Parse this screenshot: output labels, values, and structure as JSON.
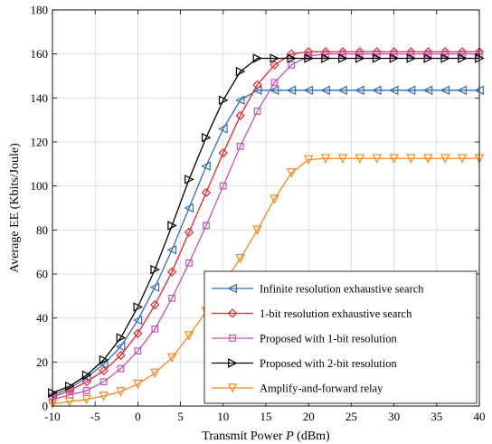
{
  "chart_data": {
    "type": "line",
    "title": "",
    "xlabel": "Transmit Power P (dBm)",
    "ylabel": "Average EE (Kbits/Joule)",
    "xlim": [
      -10,
      40
    ],
    "ylim": [
      0,
      180
    ],
    "xticks": [
      -10,
      -5,
      0,
      5,
      10,
      15,
      20,
      25,
      30,
      35,
      40
    ],
    "yticks": [
      0,
      20,
      40,
      60,
      80,
      100,
      120,
      140,
      160,
      180
    ],
    "grid": true,
    "legend_position": "bottom-right",
    "x": [
      -10,
      -8,
      -6,
      -4,
      -2,
      0,
      2,
      4,
      6,
      8,
      10,
      12,
      14,
      16,
      18,
      20,
      22,
      24,
      26,
      28,
      30,
      32,
      34,
      36,
      38,
      40
    ],
    "series": [
      {
        "name": "Infinite resolution exhaustive search",
        "color": "#2f6db5",
        "marker": "triangle-left",
        "values": [
          5,
          8,
          13,
          19,
          27,
          39,
          54,
          71,
          90,
          109,
          126,
          139,
          143.5,
          143.5,
          143.5,
          143.5,
          143.5,
          143.5,
          143.5,
          143.5,
          143.5,
          143.5,
          143.5,
          143.5,
          143.5,
          143.5
        ]
      },
      {
        "name": "1-bit resolution exhaustive search",
        "color": "#e8262a",
        "marker": "diamond",
        "values": [
          4,
          7,
          11,
          16,
          23,
          33,
          46,
          61,
          79,
          97,
          115,
          132,
          146,
          155,
          160,
          161,
          161,
          161,
          161,
          161,
          161,
          161,
          161,
          161,
          161,
          161
        ]
      },
      {
        "name": "Proposed with 1-bit resolution",
        "color": "#c254b8",
        "marker": "square",
        "values": [
          3,
          5,
          7,
          11,
          17,
          25,
          35,
          49,
          65,
          82,
          100,
          118,
          134,
          147,
          155,
          159,
          160,
          160,
          160,
          160,
          160,
          160,
          160,
          160,
          160,
          160
        ]
      },
      {
        "name": "Proposed with 2-bit resolution",
        "color": "#000000",
        "marker": "triangle-right",
        "values": [
          6,
          9,
          14,
          21,
          31,
          45,
          62,
          82,
          103,
          122,
          139,
          152,
          158,
          158,
          158,
          158,
          158,
          158,
          158,
          158,
          158,
          158,
          158,
          158,
          158,
          158
        ]
      },
      {
        "name": "Amplify-and-forward relay",
        "color": "#f5891f",
        "marker": "triangle-down",
        "values": [
          1,
          2,
          3,
          4.5,
          6.5,
          10,
          15,
          22,
          32,
          43,
          56,
          67,
          80,
          94,
          106,
          112,
          112.5,
          112.5,
          112.5,
          112.5,
          112.5,
          112.5,
          112.5,
          112.5,
          112.5,
          112.5
        ]
      }
    ]
  }
}
